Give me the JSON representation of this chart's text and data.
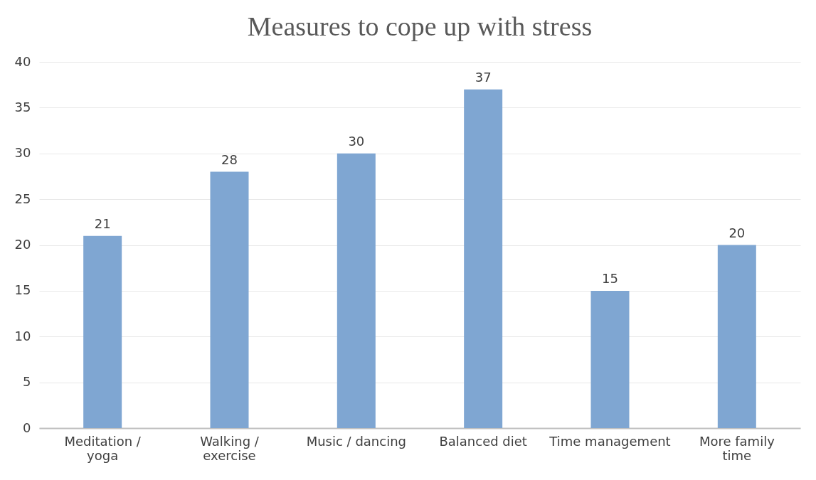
{
  "chart_data": {
    "type": "bar",
    "title": "Measures to cope up with stress",
    "categories": [
      "Meditation / yoga",
      "Walking / exercise",
      "Music / dancing",
      "Balanced diet",
      "Time management",
      "More family time"
    ],
    "values": [
      21,
      28,
      30,
      37,
      15,
      20
    ],
    "color": "#7fa6d2",
    "ylim": [
      0,
      40
    ],
    "yticks": [
      0,
      5,
      10,
      15,
      20,
      25,
      30,
      35,
      40
    ],
    "grid": "y",
    "data_labels": true
  }
}
